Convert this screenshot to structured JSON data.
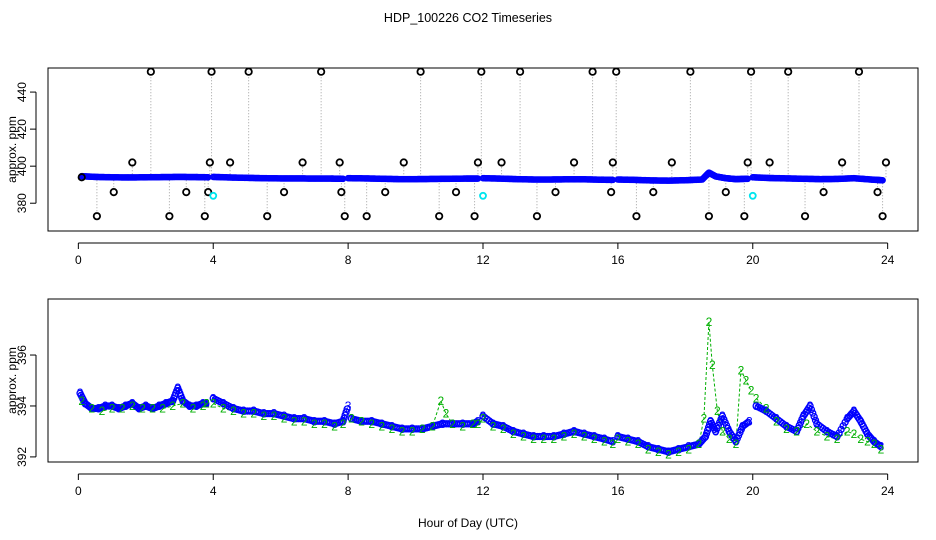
{
  "chart_data": {
    "title": "HDP_100226  CO2 Timeseries",
    "xlabel": "Hour of Day (UTC)",
    "colors": {
      "primary": "#0000ff",
      "secondary": "#00b000",
      "calib": "#000000",
      "flag": "#00e5ee",
      "connector": "#a0a0a0"
    },
    "panels": [
      {
        "id": "top",
        "type": "scatter",
        "ylabel": "approx. ppm",
        "xlim": [
          -0.9,
          24.9
        ],
        "ylim": [
          365,
          453
        ],
        "xticks": [
          0,
          4,
          8,
          12,
          16,
          20,
          24
        ],
        "yticks": [
          380,
          400,
          420,
          440
        ],
        "baseline_series": {
          "name": "ambient",
          "segments": [
            {
              "x": [
                0.1,
                0.5,
                1.0,
                1.5,
                2.0,
                2.5,
                3.0,
                3.5,
                3.85
              ],
              "y": [
                394.6,
                394.2,
                394.0,
                393.9,
                394.0,
                394.1,
                394.2,
                394.1,
                394.0
              ]
            },
            {
              "x": [
                4.0,
                4.5,
                5.0,
                5.5,
                6.0,
                6.5,
                7.0,
                7.5,
                7.85
              ],
              "y": [
                394.2,
                393.9,
                393.7,
                393.5,
                393.4,
                393.4,
                393.3,
                393.3,
                393.2
              ]
            },
            {
              "x": [
                8.0,
                8.5,
                9.0,
                9.5,
                10.0,
                10.5,
                11.0,
                11.5,
                11.85
              ],
              "y": [
                393.5,
                393.4,
                393.2,
                393.0,
                393.0,
                393.1,
                393.2,
                393.3,
                393.3
              ]
            },
            {
              "x": [
                12.0,
                12.5,
                13.0,
                13.5,
                14.0,
                14.5,
                15.0,
                15.5,
                15.85
              ],
              "y": [
                393.5,
                393.3,
                393.0,
                392.8,
                392.8,
                392.9,
                392.9,
                392.7,
                392.6
              ]
            },
            {
              "x": [
                16.0,
                16.5,
                17.0,
                17.5,
                18.0,
                18.5,
                18.7,
                18.9,
                19.2,
                19.5,
                19.85
              ],
              "y": [
                392.8,
                392.6,
                392.3,
                392.2,
                392.4,
                392.8,
                396.5,
                394.5,
                393.5,
                393.0,
                393.2
              ]
            },
            {
              "x": [
                20.0,
                20.5,
                21.0,
                21.5,
                22.0,
                22.5,
                23.0,
                23.5,
                23.85
              ],
              "y": [
                394.0,
                393.6,
                393.4,
                393.2,
                393.0,
                393.1,
                393.5,
                392.8,
                392.4
              ]
            }
          ]
        },
        "calibration_points": {
          "x": [
            0.1,
            0.55,
            1.05,
            1.6,
            2.15,
            2.7,
            3.2,
            3.75,
            3.85,
            3.9,
            3.95,
            4.5,
            5.05,
            5.6,
            6.1,
            6.65,
            7.2,
            7.75,
            7.8,
            7.9,
            8.55,
            9.1,
            9.65,
            10.15,
            10.7,
            11.2,
            11.75,
            11.85,
            11.95,
            12.55,
            13.1,
            13.6,
            14.15,
            14.7,
            15.25,
            15.8,
            15.85,
            15.95,
            16.55,
            17.05,
            17.6,
            18.15,
            18.7,
            19.2,
            19.75,
            19.85,
            19.95,
            20.5,
            21.05,
            21.55,
            22.1,
            22.65,
            23.15,
            23.7,
            23.85,
            23.95
          ],
          "y": [
            394,
            373,
            386,
            402,
            451,
            373,
            386,
            373,
            386,
            402,
            451,
            402,
            451,
            373,
            386,
            402,
            451,
            402,
            386,
            373,
            373,
            386,
            402,
            451,
            373,
            386,
            373,
            402,
            451,
            402,
            451,
            373,
            386,
            402,
            451,
            386,
            402,
            451,
            373,
            386,
            402,
            451,
            373,
            386,
            373,
            402,
            451,
            402,
            451,
            373,
            386,
            402,
            451,
            386,
            373,
            402
          ]
        },
        "flagged_points": {
          "x": [
            4.0,
            12.0,
            20.0
          ],
          "y": [
            384,
            384,
            384
          ]
        }
      },
      {
        "id": "bottom",
        "type": "line",
        "ylabel": "approx. ppm",
        "xlim": [
          -0.9,
          24.9
        ],
        "ylim": [
          391.8,
          398.2
        ],
        "xticks": [
          0,
          4,
          8,
          12,
          16,
          20,
          24
        ],
        "yticks": [
          392,
          394,
          396
        ],
        "marker_labels": {
          "series_3": "3",
          "series_2": "2"
        },
        "series": [
          {
            "name": "3",
            "segments": [
              {
                "x": [
                  0.05,
                  0.2,
                  0.4,
                  0.6,
                  0.8,
                  1.0,
                  1.2,
                  1.4,
                  1.6,
                  1.8,
                  2.0,
                  2.2,
                  2.4,
                  2.6,
                  2.8,
                  2.95,
                  3.1,
                  3.3,
                  3.5,
                  3.7,
                  3.8
                ],
                "y": [
                  394.5,
                  394.1,
                  393.9,
                  393.9,
                  394.0,
                  394.0,
                  393.9,
                  394.0,
                  394.1,
                  393.9,
                  394.0,
                  393.9,
                  394.0,
                  394.1,
                  394.2,
                  394.7,
                  394.2,
                  394.0,
                  394.0,
                  394.1,
                  394.1
                ]
              },
              {
                "x": [
                  4.0,
                  4.3,
                  4.6,
                  4.9,
                  5.2,
                  5.5,
                  5.8,
                  6.1,
                  6.4,
                  6.7,
                  7.0,
                  7.3,
                  7.6,
                  7.85,
                  8.0
                ],
                "y": [
                  394.3,
                  394.1,
                  393.9,
                  393.8,
                  393.8,
                  393.7,
                  393.7,
                  393.6,
                  393.5,
                  393.5,
                  393.4,
                  393.4,
                  393.3,
                  393.4,
                  394.0
                ]
              },
              {
                "x": [
                  8.1,
                  8.4,
                  8.7,
                  9.0,
                  9.3,
                  9.6,
                  9.9,
                  10.2,
                  10.5,
                  10.8,
                  11.1,
                  11.4,
                  11.7,
                  11.85
                ],
                "y": [
                  393.5,
                  393.4,
                  393.4,
                  393.3,
                  393.2,
                  393.1,
                  393.1,
                  393.1,
                  393.2,
                  393.3,
                  393.3,
                  393.3,
                  393.3,
                  393.4
                ]
              },
              {
                "x": [
                  12.0,
                  12.3,
                  12.6,
                  12.9,
                  13.2,
                  13.5,
                  13.8,
                  14.1,
                  14.4,
                  14.7,
                  15.0,
                  15.3,
                  15.6,
                  15.85
                ],
                "y": [
                  393.6,
                  393.3,
                  393.2,
                  393.0,
                  392.9,
                  392.8,
                  392.8,
                  392.8,
                  392.9,
                  393.0,
                  392.9,
                  392.8,
                  392.7,
                  392.6
                ]
              },
              {
                "x": [
                  16.0,
                  16.3,
                  16.6,
                  16.9,
                  17.2,
                  17.5,
                  17.8,
                  18.1,
                  18.4,
                  18.6,
                  18.75,
                  18.9,
                  19.1,
                  19.3,
                  19.5,
                  19.7,
                  19.9
                ],
                "y": [
                  392.8,
                  392.7,
                  392.6,
                  392.4,
                  392.3,
                  392.2,
                  392.3,
                  392.4,
                  392.5,
                  392.8,
                  393.4,
                  393.0,
                  393.6,
                  393.0,
                  392.6,
                  393.2,
                  393.4
                ]
              },
              {
                "x": [
                  20.1,
                  20.4,
                  20.7,
                  21.0,
                  21.3,
                  21.5,
                  21.7,
                  21.9,
                  22.2,
                  22.5,
                  22.8,
                  23.0,
                  23.2,
                  23.4,
                  23.6,
                  23.8
                ],
                "y": [
                  394.0,
                  393.8,
                  393.5,
                  393.2,
                  393.0,
                  393.6,
                  394.0,
                  393.3,
                  393.0,
                  392.8,
                  393.5,
                  393.8,
                  393.4,
                  392.9,
                  392.6,
                  392.4
                ]
              }
            ]
          },
          {
            "name": "2",
            "segments": [
              {
                "x": [
                  0.1,
                  0.4,
                  0.7,
                  1.0,
                  1.3,
                  1.6,
                  1.9,
                  2.2,
                  2.5,
                  2.8,
                  3.1,
                  3.4,
                  3.7,
                  3.8
                ],
                "y": [
                  394.2,
                  393.9,
                  393.8,
                  393.9,
                  393.9,
                  394.0,
                  393.9,
                  393.9,
                  393.9,
                  394.0,
                  394.1,
                  393.9,
                  394.0,
                  394.1
                ]
              },
              {
                "x": [
                  4.0,
                  4.3,
                  4.6,
                  4.9,
                  5.2,
                  5.5,
                  5.8,
                  6.1,
                  6.4,
                  6.7,
                  7.0,
                  7.3,
                  7.6,
                  7.85
                ],
                "y": [
                  394.1,
                  393.9,
                  393.8,
                  393.7,
                  393.7,
                  393.6,
                  393.6,
                  393.5,
                  393.4,
                  393.4,
                  393.3,
                  393.3,
                  393.2,
                  393.3
                ]
              },
              {
                "x": [
                  8.1,
                  8.4,
                  8.7,
                  9.0,
                  9.3,
                  9.6,
                  9.9,
                  10.2,
                  10.5,
                  10.75,
                  10.9,
                  11.1,
                  11.4,
                  11.7,
                  11.85
                ],
                "y": [
                  393.5,
                  393.4,
                  393.3,
                  393.2,
                  393.1,
                  393.0,
                  393.0,
                  393.1,
                  393.2,
                  394.2,
                  393.7,
                  393.3,
                  393.2,
                  393.3,
                  393.3
                ]
              },
              {
                "x": [
                  12.0,
                  12.3,
                  12.6,
                  12.9,
                  13.2,
                  13.5,
                  13.8,
                  14.1,
                  14.4,
                  14.7,
                  15.0,
                  15.3,
                  15.6,
                  15.85
                ],
                "y": [
                  393.5,
                  393.2,
                  393.1,
                  392.9,
                  392.8,
                  392.7,
                  392.7,
                  392.7,
                  392.8,
                  392.9,
                  392.8,
                  392.7,
                  392.6,
                  392.5
                ]
              },
              {
                "x": [
                  16.0,
                  16.3,
                  16.6,
                  16.9,
                  17.2,
                  17.5,
                  17.8,
                  18.1,
                  18.4,
                  18.55,
                  18.7,
                  18.8,
                  18.95,
                  19.1,
                  19.3,
                  19.5,
                  19.65,
                  19.8,
                  19.95
                ],
                "y": [
                  392.7,
                  392.6,
                  392.5,
                  392.3,
                  392.2,
                  392.1,
                  392.2,
                  392.3,
                  392.5,
                  393.5,
                  397.3,
                  395.6,
                  393.8,
                  393.0,
                  392.7,
                  392.5,
                  395.4,
                  395.0,
                  394.6
                ]
              },
              {
                "x": [
                  20.1,
                  20.4,
                  20.7,
                  21.0,
                  21.3,
                  21.6,
                  21.9,
                  22.2,
                  22.5,
                  22.8,
                  23.0,
                  23.2,
                  23.4,
                  23.6,
                  23.8
                ],
                "y": [
                  394.3,
                  393.9,
                  393.4,
                  393.1,
                  393.0,
                  393.3,
                  393.0,
                  392.8,
                  392.7,
                  393.0,
                  392.9,
                  392.7,
                  392.6,
                  392.5,
                  392.3
                ]
              }
            ]
          }
        ]
      }
    ]
  }
}
